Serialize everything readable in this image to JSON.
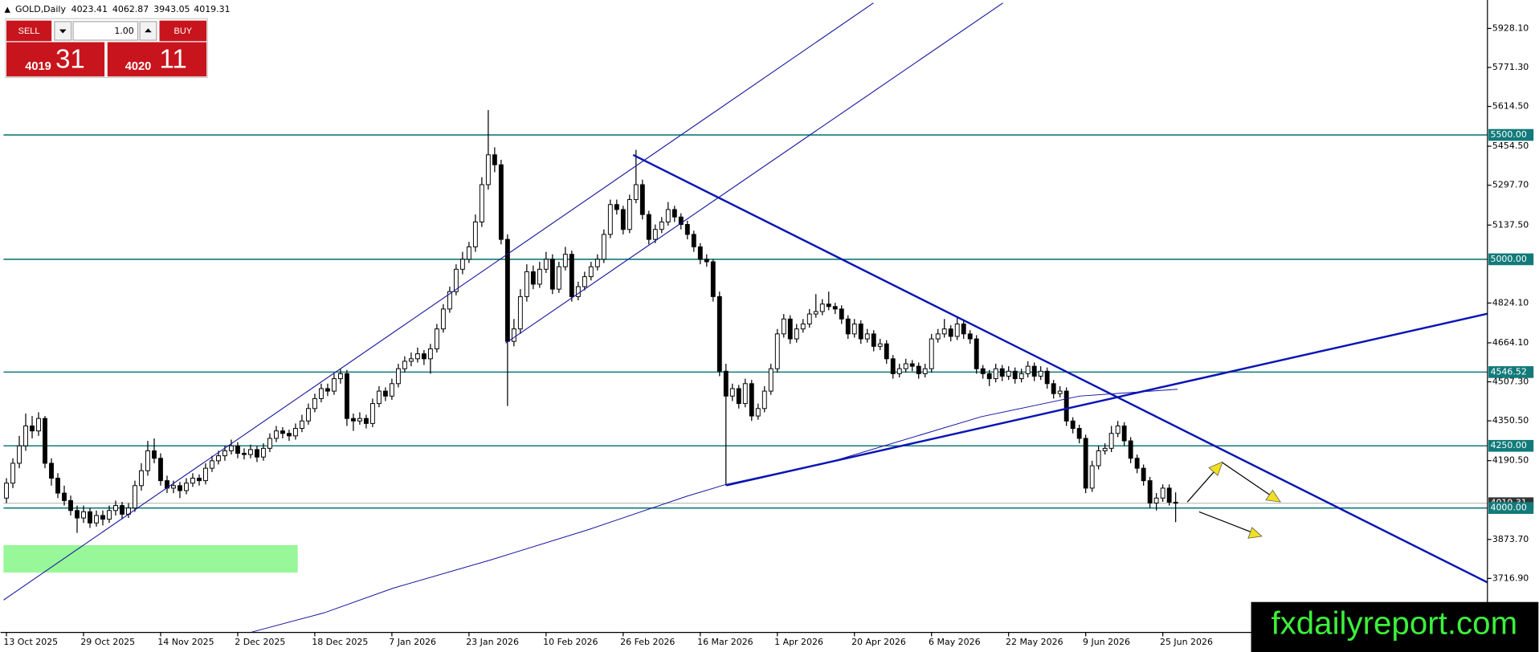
{
  "chart_data": {
    "type": "candlestick",
    "title": "GOLD,Daily",
    "bull_color": "#ffffff",
    "bear_color": "#000000",
    "level_color": "#127a7a",
    "grid": false,
    "ylim": [
      3500,
      6042.4
    ],
    "yticks": [
      {
        "value": 5928.1,
        "label": "5928.10"
      },
      {
        "value": 5771.3,
        "label": "5771.30"
      },
      {
        "value": 5614.5,
        "label": "5614.50"
      },
      {
        "value": 5454.5,
        "label": "5454.50"
      },
      {
        "value": 5297.7,
        "label": "5297.70"
      },
      {
        "value": 5137.5,
        "label": "5137.50"
      },
      {
        "value": 4824.1,
        "label": "4824.10"
      },
      {
        "value": 4664.1,
        "label": "4664.10"
      },
      {
        "value": 4507.3,
        "label": "4507.30"
      },
      {
        "value": 4350.5,
        "label": "4350.50"
      },
      {
        "value": 4190.5,
        "label": "4190.50"
      },
      {
        "value": 3873.7,
        "label": "3873.70"
      },
      {
        "value": 3716.9,
        "label": "3716.90"
      }
    ],
    "levels": [
      {
        "value": 5500,
        "label": "5500.00"
      },
      {
        "value": 5000,
        "label": "5000.00"
      },
      {
        "value": 4546.52,
        "label": "4546.52"
      },
      {
        "value": 4250,
        "label": "4250.00"
      },
      {
        "value": 4000,
        "label": "4000.00"
      }
    ],
    "categories": [
      "13 Oct 2025",
      null,
      null,
      null,
      null,
      null,
      null,
      null,
      null,
      null,
      null,
      null,
      "29 Oct 2025",
      null,
      null,
      null,
      null,
      null,
      null,
      null,
      null,
      null,
      null,
      null,
      "14 Nov 2025",
      null,
      null,
      null,
      null,
      null,
      null,
      null,
      null,
      null,
      null,
      null,
      "2 Dec 2025",
      null,
      null,
      null,
      null,
      null,
      null,
      null,
      null,
      null,
      null,
      null,
      "18 Dec 2025",
      null,
      null,
      null,
      null,
      null,
      null,
      null,
      null,
      null,
      null,
      null,
      "7 Jan 2026",
      null,
      null,
      null,
      null,
      null,
      null,
      null,
      null,
      null,
      null,
      null,
      "23 Jan 2026",
      null,
      null,
      null,
      null,
      null,
      null,
      null,
      null,
      null,
      null,
      null,
      "10 Feb 2026",
      null,
      null,
      null,
      null,
      null,
      null,
      null,
      null,
      null,
      null,
      null,
      "26 Feb 2026",
      null,
      null,
      null,
      null,
      null,
      null,
      null,
      null,
      null,
      null,
      null,
      "16 Mar 2026",
      null,
      null,
      null,
      null,
      null,
      null,
      null,
      null,
      null,
      null,
      null,
      "1 Apr 2026",
      null,
      null,
      null,
      null,
      null,
      null,
      null,
      null,
      null,
      null,
      null,
      "20 Apr 2026",
      null,
      null,
      null,
      null,
      null,
      null,
      null,
      null,
      null,
      null,
      null,
      "6 May 2026",
      null,
      null,
      null,
      null,
      null,
      null,
      null,
      null,
      null,
      null,
      null,
      "22 May 2026",
      null,
      null,
      null,
      null,
      null,
      null,
      null,
      null,
      null,
      null,
      null,
      "9 Jun 2026",
      null,
      null,
      null,
      null,
      null,
      null,
      null,
      null,
      null,
      null,
      null,
      "25 Jun 2026",
      null,
      null
    ],
    "ohlc": [
      [
        4040,
        4120,
        4020,
        4100
      ],
      [
        4100,
        4200,
        4080,
        4180
      ],
      [
        4180,
        4290,
        4160,
        4250
      ],
      [
        4250,
        4380,
        4230,
        4330
      ],
      [
        4330,
        4370,
        4280,
        4310
      ],
      [
        4310,
        4385,
        4290,
        4360
      ],
      [
        4360,
        4370,
        4160,
        4180
      ],
      [
        4180,
        4200,
        4090,
        4120
      ],
      [
        4120,
        4140,
        4040,
        4060
      ],
      [
        4060,
        4090,
        4010,
        4030
      ],
      [
        4030,
        4050,
        3970,
        3990
      ],
      [
        3990,
        4010,
        3900,
        3960
      ],
      [
        3960,
        4010,
        3940,
        3985
      ],
      [
        3985,
        4000,
        3920,
        3940
      ],
      [
        3940,
        3990,
        3925,
        3970
      ],
      [
        3970,
        3990,
        3930,
        3955
      ],
      [
        3955,
        4010,
        3940,
        3990
      ],
      [
        3990,
        4030,
        3970,
        4010
      ],
      [
        4010,
        4025,
        3955,
        3975
      ],
      [
        3975,
        4020,
        3960,
        4000
      ],
      [
        4000,
        4110,
        3985,
        4090
      ],
      [
        4090,
        4180,
        4070,
        4150
      ],
      [
        4150,
        4270,
        4130,
        4230
      ],
      [
        4230,
        4280,
        4180,
        4200
      ],
      [
        4200,
        4220,
        4090,
        4110
      ],
      [
        4110,
        4130,
        4060,
        4080
      ],
      [
        4080,
        4110,
        4060,
        4090
      ],
      [
        4090,
        4105,
        4040,
        4070
      ],
      [
        4070,
        4120,
        4055,
        4100
      ],
      [
        4100,
        4140,
        4085,
        4120
      ],
      [
        4120,
        4135,
        4090,
        4110
      ],
      [
        4110,
        4180,
        4095,
        4160
      ],
      [
        4160,
        4210,
        4145,
        4190
      ],
      [
        4190,
        4230,
        4175,
        4210
      ],
      [
        4210,
        4250,
        4190,
        4230
      ],
      [
        4230,
        4275,
        4215,
        4250
      ],
      [
        4250,
        4265,
        4200,
        4220
      ],
      [
        4220,
        4240,
        4195,
        4215
      ],
      [
        4215,
        4255,
        4200,
        4235
      ],
      [
        4235,
        4250,
        4185,
        4205
      ],
      [
        4205,
        4260,
        4190,
        4240
      ],
      [
        4240,
        4300,
        4225,
        4280
      ],
      [
        4280,
        4330,
        4265,
        4310
      ],
      [
        4310,
        4325,
        4280,
        4300
      ],
      [
        4300,
        4315,
        4270,
        4290
      ],
      [
        4290,
        4340,
        4275,
        4320
      ],
      [
        4320,
        4375,
        4305,
        4350
      ],
      [
        4350,
        4420,
        4335,
        4400
      ],
      [
        4400,
        4460,
        4385,
        4440
      ],
      [
        4440,
        4500,
        4425,
        4480
      ],
      [
        4480,
        4500,
        4450,
        4470
      ],
      [
        4470,
        4540,
        4455,
        4520
      ],
      [
        4520,
        4560,
        4500,
        4540
      ],
      [
        4540,
        4555,
        4330,
        4360
      ],
      [
        4360,
        4380,
        4310,
        4350
      ],
      [
        4350,
        4385,
        4335,
        4360
      ],
      [
        4360,
        4375,
        4320,
        4340
      ],
      [
        4340,
        4440,
        4325,
        4420
      ],
      [
        4420,
        4490,
        4405,
        4470
      ],
      [
        4470,
        4485,
        4430,
        4450
      ],
      [
        4450,
        4520,
        4435,
        4500
      ],
      [
        4500,
        4580,
        4485,
        4560
      ],
      [
        4560,
        4610,
        4545,
        4590
      ],
      [
        4590,
        4625,
        4570,
        4600
      ],
      [
        4600,
        4645,
        4585,
        4620
      ],
      [
        4620,
        4635,
        4575,
        4600
      ],
      [
        4600,
        4660,
        4540,
        4640
      ],
      [
        4640,
        4740,
        4625,
        4720
      ],
      [
        4720,
        4820,
        4705,
        4800
      ],
      [
        4800,
        4890,
        4785,
        4870
      ],
      [
        4870,
        4980,
        4855,
        4960
      ],
      [
        4960,
        5030,
        4940,
        5000
      ],
      [
        5000,
        5070,
        4985,
        5050
      ],
      [
        5050,
        5180,
        5030,
        5150
      ],
      [
        5150,
        5330,
        5130,
        5300
      ],
      [
        5300,
        5600,
        5280,
        5420
      ],
      [
        5420,
        5450,
        5350,
        5380
      ],
      [
        5380,
        5400,
        5060,
        5080
      ],
      [
        5080,
        5100,
        4410,
        4670
      ],
      [
        4670,
        4760,
        4650,
        4720
      ],
      [
        4720,
        4880,
        4700,
        4850
      ],
      [
        4850,
        4980,
        4830,
        4950
      ],
      [
        4950,
        4975,
        4880,
        4900
      ],
      [
        4900,
        4990,
        4885,
        4960
      ],
      [
        4960,
        5030,
        4945,
        5000
      ],
      [
        5000,
        5020,
        4860,
        4880
      ],
      [
        4880,
        4990,
        4865,
        4970
      ],
      [
        4970,
        5050,
        4955,
        5020
      ],
      [
        5020,
        5035,
        4830,
        4850
      ],
      [
        4850,
        4910,
        4835,
        4890
      ],
      [
        4890,
        4950,
        4875,
        4930
      ],
      [
        4930,
        4990,
        4915,
        4970
      ],
      [
        4970,
        5020,
        4955,
        5000
      ],
      [
        5000,
        5120,
        4985,
        5100
      ],
      [
        5100,
        5240,
        5085,
        5220
      ],
      [
        5220,
        5240,
        5180,
        5200
      ],
      [
        5200,
        5215,
        5100,
        5120
      ],
      [
        5120,
        5260,
        5105,
        5240
      ],
      [
        5240,
        5440,
        5225,
        5300
      ],
      [
        5300,
        5320,
        5160,
        5180
      ],
      [
        5180,
        5195,
        5060,
        5080
      ],
      [
        5080,
        5140,
        5065,
        5120
      ],
      [
        5120,
        5170,
        5105,
        5150
      ],
      [
        5150,
        5230,
        5135,
        5200
      ],
      [
        5200,
        5215,
        5150,
        5170
      ],
      [
        5170,
        5185,
        5120,
        5140
      ],
      [
        5140,
        5155,
        5080,
        5100
      ],
      [
        5100,
        5115,
        5030,
        5050
      ],
      [
        5050,
        5065,
        4980,
        5000
      ],
      [
        5000,
        5020,
        4970,
        4990
      ],
      [
        4990,
        5000,
        4830,
        4850
      ],
      [
        4850,
        4870,
        4530,
        4550
      ],
      [
        4550,
        4580,
        4090,
        4450
      ],
      [
        4450,
        4500,
        4430,
        4480
      ],
      [
        4480,
        4495,
        4400,
        4420
      ],
      [
        4420,
        4520,
        4405,
        4500
      ],
      [
        4500,
        4515,
        4350,
        4370
      ],
      [
        4370,
        4420,
        4355,
        4400
      ],
      [
        4400,
        4490,
        4385,
        4470
      ],
      [
        4470,
        4580,
        4455,
        4560
      ],
      [
        4560,
        4720,
        4545,
        4700
      ],
      [
        4700,
        4780,
        4685,
        4760
      ],
      [
        4760,
        4775,
        4660,
        4680
      ],
      [
        4680,
        4740,
        4665,
        4720
      ],
      [
        4720,
        4760,
        4705,
        4740
      ],
      [
        4740,
        4800,
        4725,
        4780
      ],
      [
        4780,
        4860,
        4765,
        4790
      ],
      [
        4790,
        4840,
        4775,
        4820
      ],
      [
        4820,
        4870,
        4795,
        4810
      ],
      [
        4810,
        4825,
        4780,
        4800
      ],
      [
        4800,
        4815,
        4740,
        4760
      ],
      [
        4760,
        4775,
        4680,
        4700
      ],
      [
        4700,
        4760,
        4685,
        4740
      ],
      [
        4740,
        4755,
        4660,
        4680
      ],
      [
        4680,
        4720,
        4665,
        4700
      ],
      [
        4700,
        4715,
        4630,
        4650
      ],
      [
        4650,
        4680,
        4635,
        4660
      ],
      [
        4660,
        4675,
        4580,
        4600
      ],
      [
        4600,
        4615,
        4520,
        4540
      ],
      [
        4540,
        4580,
        4525,
        4560
      ],
      [
        4560,
        4600,
        4545,
        4580
      ],
      [
        4580,
        4595,
        4550,
        4570
      ],
      [
        4570,
        4585,
        4520,
        4540
      ],
      [
        4540,
        4580,
        4525,
        4560
      ],
      [
        4560,
        4700,
        4545,
        4680
      ],
      [
        4680,
        4720,
        4665,
        4700
      ],
      [
        4700,
        4760,
        4685,
        4720
      ],
      [
        4720,
        4735,
        4670,
        4690
      ],
      [
        4690,
        4770,
        4675,
        4740
      ],
      [
        4740,
        4755,
        4680,
        4700
      ],
      [
        4700,
        4715,
        4660,
        4680
      ],
      [
        4680,
        4695,
        4540,
        4560
      ],
      [
        4560,
        4575,
        4520,
        4540
      ],
      [
        4540,
        4555,
        4490,
        4520
      ],
      [
        4520,
        4580,
        4505,
        4560
      ],
      [
        4560,
        4575,
        4510,
        4530
      ],
      [
        4530,
        4570,
        4515,
        4550
      ],
      [
        4550,
        4565,
        4500,
        4520
      ],
      [
        4520,
        4560,
        4505,
        4540
      ],
      [
        4540,
        4590,
        4525,
        4570
      ],
      [
        4570,
        4585,
        4510,
        4530
      ],
      [
        4530,
        4570,
        4515,
        4550
      ],
      [
        4550,
        4565,
        4480,
        4500
      ],
      [
        4500,
        4515,
        4440,
        4460
      ],
      [
        4460,
        4490,
        4445,
        4470
      ],
      [
        4470,
        4485,
        4330,
        4350
      ],
      [
        4350,
        4365,
        4300,
        4320
      ],
      [
        4320,
        4335,
        4260,
        4280
      ],
      [
        4280,
        4295,
        4060,
        4080
      ],
      [
        4080,
        4190,
        4065,
        4170
      ],
      [
        4170,
        4250,
        4155,
        4230
      ],
      [
        4230,
        4260,
        4215,
        4240
      ],
      [
        4240,
        4330,
        4225,
        4300
      ],
      [
        4300,
        4350,
        4285,
        4330
      ],
      [
        4330,
        4345,
        4250,
        4270
      ],
      [
        4270,
        4285,
        4180,
        4200
      ],
      [
        4200,
        4215,
        4140,
        4160
      ],
      [
        4160,
        4175,
        4090,
        4110
      ],
      [
        4110,
        4125,
        4000,
        4020
      ],
      [
        4020,
        4060,
        3990,
        4040
      ],
      [
        4040,
        4095,
        4025,
        4080
      ],
      [
        4080,
        4095,
        4010,
        4023.41
      ],
      [
        4023.41,
        4062.87,
        3943.05,
        4019.31
      ]
    ]
  },
  "trade_panel": {
    "sell": "SELL",
    "buy": "BUY",
    "lot": "1.00",
    "sell_price": [
      "4019",
      "31"
    ],
    "buy_price": [
      "4020",
      "11"
    ]
  },
  "watermark": "fxdailyreport.com"
}
